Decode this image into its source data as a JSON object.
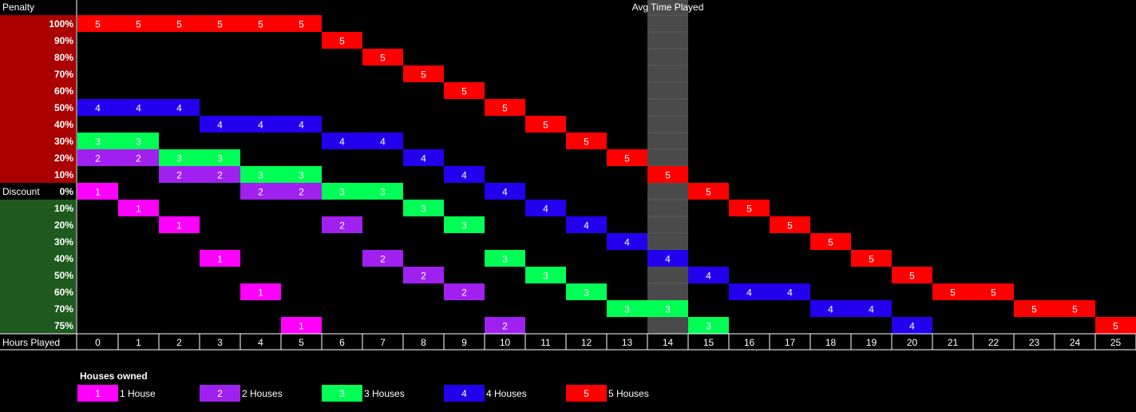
{
  "labels": {
    "penalty": "Penalty",
    "discount": "Discount",
    "hours_played": "Hours Played",
    "avg_marker": "Avg Time Played"
  },
  "colors": {
    "penalty_band": "#aa0000",
    "discount_band": "#1e5a1e",
    "avg_band": "#4a4a4a",
    "h1": "#ff00ff",
    "h2": "#a020f0",
    "h3": "#00ff55",
    "h4": "#2200ee",
    "h5": "#ff0000"
  },
  "legend": {
    "title": "Houses owned",
    "items": [
      {
        "code": "1",
        "label": "1 House",
        "color": "#ff00ff"
      },
      {
        "code": "2",
        "label": "2 Houses",
        "color": "#a020f0"
      },
      {
        "code": "3",
        "label": "3 Houses",
        "color": "#00ff55"
      },
      {
        "code": "4",
        "label": "4 Houses",
        "color": "#2200ee"
      },
      {
        "code": "5",
        "label": "5 Houses",
        "color": "#ff0000"
      }
    ]
  },
  "chart_data": {
    "type": "heatmap",
    "title": "",
    "xlabel": "Hours Played",
    "x": [
      0,
      1,
      2,
      3,
      4,
      5,
      6,
      7,
      8,
      9,
      10,
      11,
      12,
      13,
      14,
      15,
      16,
      17,
      18,
      19,
      20,
      21,
      22,
      23,
      24,
      25
    ],
    "y_penalty": [
      "100%",
      "90%",
      "80%",
      "70%",
      "60%",
      "50%",
      "40%",
      "30%",
      "20%",
      "10%"
    ],
    "y_zero": "0%",
    "y_discount": [
      "10%",
      "20%",
      "30%",
      "40%",
      "50%",
      "60%",
      "70%",
      "75%"
    ],
    "avg_time_played_hour": 14,
    "series": [
      {
        "name": "1 House",
        "houses": 1,
        "points": [
          [
            0,
            "0%"
          ],
          [
            1,
            "-10%"
          ],
          [
            2,
            "-20%"
          ],
          [
            3,
            "-40%"
          ],
          [
            4,
            "-60%"
          ],
          [
            5,
            "-75%"
          ]
        ]
      },
      {
        "name": "2 Houses",
        "houses": 2,
        "points": [
          [
            0,
            "20%"
          ],
          [
            1,
            "20%"
          ],
          [
            2,
            "10%"
          ],
          [
            3,
            "10%"
          ],
          [
            4,
            "0%"
          ],
          [
            5,
            "0%"
          ],
          [
            6,
            "-20%"
          ],
          [
            7,
            "-40%"
          ],
          [
            8,
            "-50%"
          ],
          [
            9,
            "-60%"
          ],
          [
            10,
            "-75%"
          ]
        ]
      },
      {
        "name": "3 Houses",
        "houses": 3,
        "points": [
          [
            0,
            "30%"
          ],
          [
            1,
            "30%"
          ],
          [
            2,
            "20%"
          ],
          [
            3,
            "20%"
          ],
          [
            4,
            "10%"
          ],
          [
            5,
            "10%"
          ],
          [
            6,
            "0%"
          ],
          [
            7,
            "0%"
          ],
          [
            8,
            "-10%"
          ],
          [
            9,
            "-20%"
          ],
          [
            10,
            "-40%"
          ],
          [
            11,
            "-50%"
          ],
          [
            12,
            "-60%"
          ],
          [
            13,
            "-70%"
          ],
          [
            14,
            "-70%"
          ],
          [
            15,
            "-75%"
          ]
        ]
      },
      {
        "name": "4 Houses",
        "houses": 4,
        "points": [
          [
            0,
            "50%"
          ],
          [
            1,
            "50%"
          ],
          [
            2,
            "50%"
          ],
          [
            3,
            "40%"
          ],
          [
            4,
            "40%"
          ],
          [
            5,
            "40%"
          ],
          [
            6,
            "30%"
          ],
          [
            7,
            "30%"
          ],
          [
            8,
            "20%"
          ],
          [
            9,
            "10%"
          ],
          [
            10,
            "0%"
          ],
          [
            11,
            "-10%"
          ],
          [
            12,
            "-20%"
          ],
          [
            13,
            "-30%"
          ],
          [
            14,
            "-40%"
          ],
          [
            15,
            "-50%"
          ],
          [
            16,
            "-60%"
          ],
          [
            17,
            "-60%"
          ],
          [
            18,
            "-70%"
          ],
          [
            19,
            "-70%"
          ],
          [
            20,
            "-75%"
          ]
        ]
      },
      {
        "name": "5 Houses",
        "houses": 5,
        "points": [
          [
            0,
            "100%"
          ],
          [
            1,
            "100%"
          ],
          [
            2,
            "100%"
          ],
          [
            3,
            "100%"
          ],
          [
            4,
            "100%"
          ],
          [
            5,
            "100%"
          ],
          [
            6,
            "90%"
          ],
          [
            7,
            "80%"
          ],
          [
            8,
            "70%"
          ],
          [
            9,
            "60%"
          ],
          [
            10,
            "50%"
          ],
          [
            11,
            "40%"
          ],
          [
            12,
            "30%"
          ],
          [
            13,
            "20%"
          ],
          [
            14,
            "10%"
          ],
          [
            15,
            "0%"
          ],
          [
            16,
            "-10%"
          ],
          [
            17,
            "-20%"
          ],
          [
            18,
            "-30%"
          ],
          [
            19,
            "-40%"
          ],
          [
            20,
            "-50%"
          ],
          [
            21,
            "-60%"
          ],
          [
            22,
            "-60%"
          ],
          [
            23,
            "-70%"
          ],
          [
            24,
            "-70%"
          ],
          [
            25,
            "-75%"
          ]
        ]
      }
    ]
  }
}
